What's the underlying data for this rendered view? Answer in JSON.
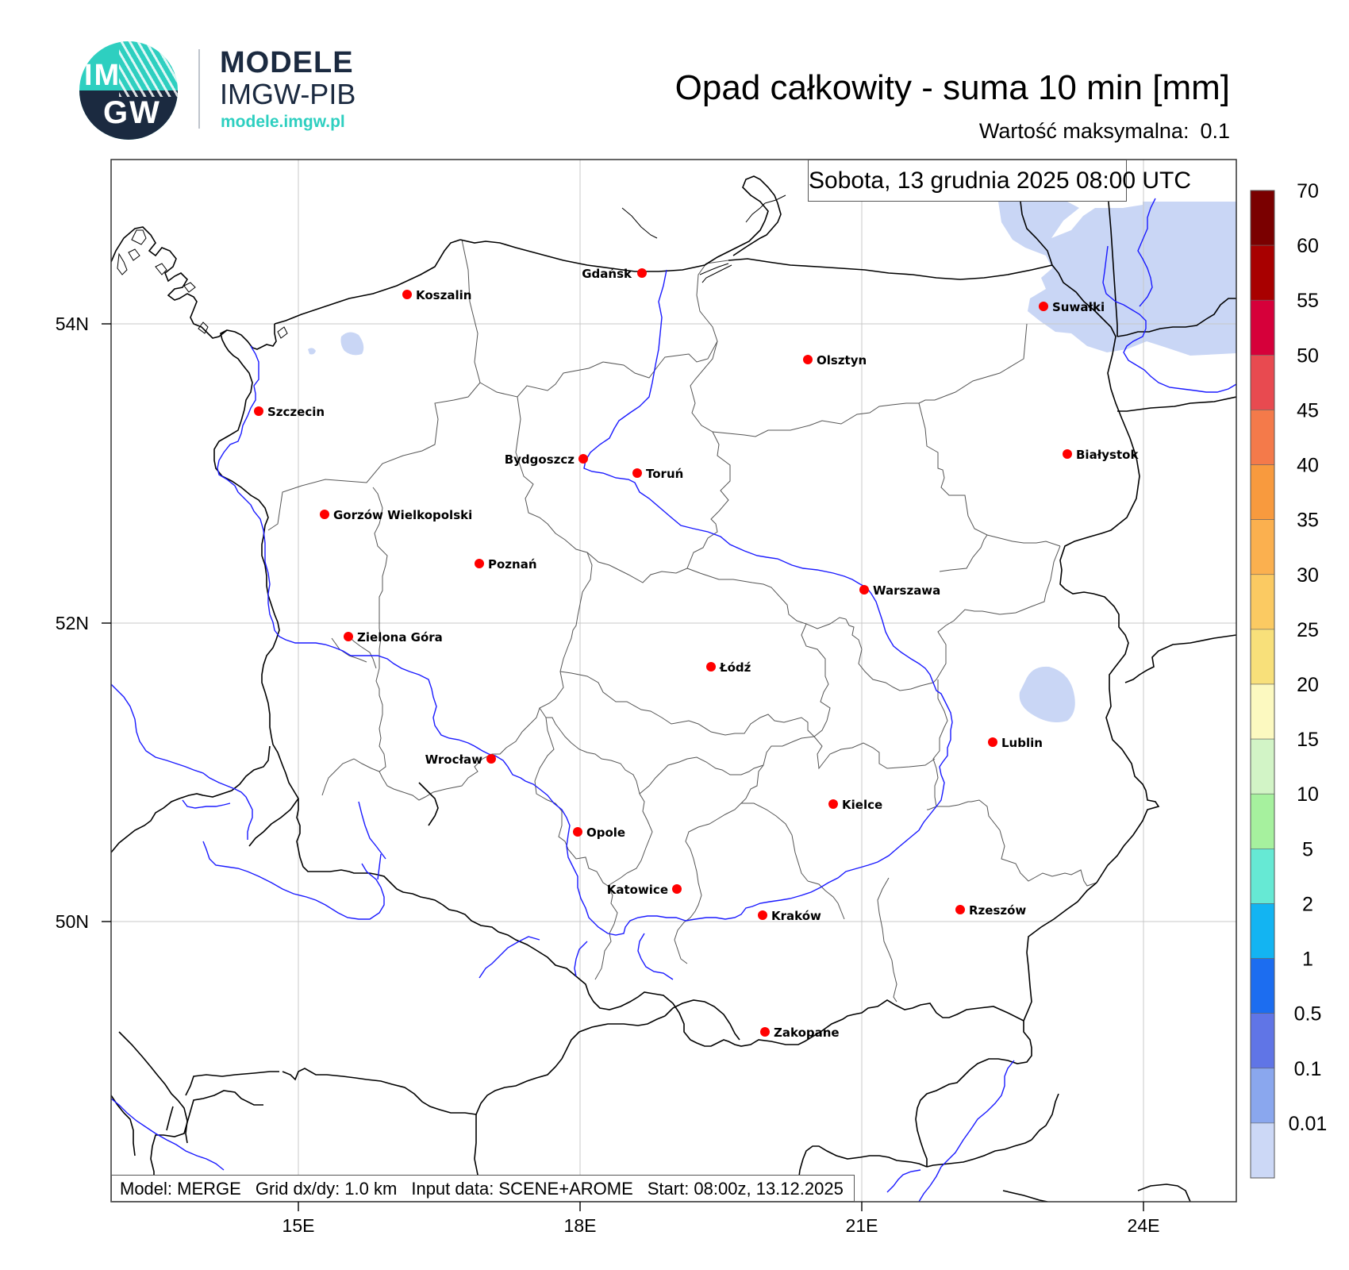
{
  "logo": {
    "mark_top": "IM",
    "mark_bottom": "GW",
    "name": "MODELE",
    "org": "IMGW-PIB",
    "url": "modele.imgw.pl"
  },
  "header": {
    "title": "Opad całkowity - suma 10 min [mm]",
    "max_label": "Wartość maksymalna:",
    "max_value": "0.1"
  },
  "map": {
    "date": "Sobota, 13 grudnia 2025 08:00 UTC",
    "lat_ticks": [
      "54N",
      "52N",
      "50N"
    ],
    "lon_ticks": [
      "15E",
      "18E",
      "21E",
      "24E"
    ],
    "cities": [
      {
        "name": "Gdańsk"
      },
      {
        "name": "Koszalin"
      },
      {
        "name": "Suwałki"
      },
      {
        "name": "Olsztyn"
      },
      {
        "name": "Szczecin"
      },
      {
        "name": "Białystok"
      },
      {
        "name": "Bydgoszcz"
      },
      {
        "name": "Toruń"
      },
      {
        "name": "Gorzów Wielkopolski"
      },
      {
        "name": "Poznań"
      },
      {
        "name": "Warszawa"
      },
      {
        "name": "Zielona Góra"
      },
      {
        "name": "Łódź"
      },
      {
        "name": "Lublin"
      },
      {
        "name": "Wrocław"
      },
      {
        "name": "Kielce"
      },
      {
        "name": "Opole"
      },
      {
        "name": "Katowice"
      },
      {
        "name": "Rzeszów"
      },
      {
        "name": "Kraków"
      },
      {
        "name": "Zakopane"
      }
    ],
    "precip_color": "#c9d6f5",
    "city_marker_color": "#ff0000",
    "river_color": "#1a1aff"
  },
  "colorbar": {
    "labels": [
      "70",
      "60",
      "55",
      "50",
      "45",
      "40",
      "35",
      "30",
      "25",
      "20",
      "15",
      "10",
      "5",
      "2",
      "1",
      "0.5",
      "0.1",
      "0.01"
    ],
    "colors": [
      "#7a0000",
      "#a80000",
      "#d6003a",
      "#e84a50",
      "#f47a4a",
      "#f89a3e",
      "#fbb04f",
      "#fbca62",
      "#f8e07a",
      "#fcf9c0",
      "#d2f4c6",
      "#a6f19e",
      "#66e9d4",
      "#13b4f2",
      "#1c6df0",
      "#6075e6",
      "#8aa7ee",
      "#ccd8f6"
    ]
  },
  "footer": {
    "model": "Model: MERGE",
    "grid": "Grid dx/dy: 1.0 km",
    "input": "Input data: SCENE+AROME",
    "start": "Start: 08:00z, 13.12.2025"
  }
}
